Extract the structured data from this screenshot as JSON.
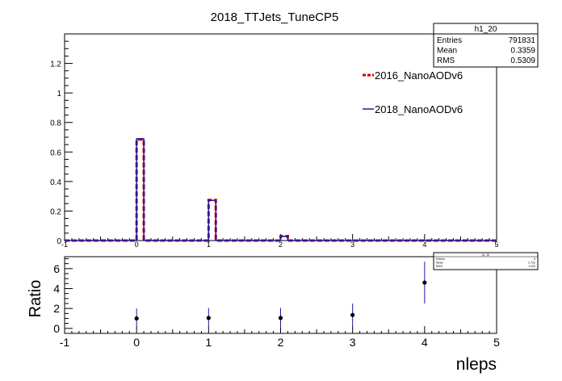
{
  "chart_data": [
    {
      "type": "bar",
      "title": "2018_TTJets_TuneCP5",
      "xlim": [
        -1,
        5
      ],
      "ylim": [
        0,
        1.4
      ],
      "x_ticks": [
        "-1",
        "0",
        "1",
        "2",
        "3",
        "4",
        "5"
      ],
      "y_ticks": [
        "0",
        "0.2",
        "0.4",
        "0.6",
        "0.8",
        "1",
        "1.2"
      ],
      "series": [
        {
          "name": "2016_NanoAODv6",
          "color": "#cc0000",
          "style": "dashed",
          "x": [
            -1,
            0,
            1,
            2,
            3,
            4
          ],
          "values": [
            0.0,
            0.685,
            0.275,
            0.03,
            0.0,
            0.0
          ]
        },
        {
          "name": "2018_NanoAODv6",
          "color": "#1a1aa6",
          "style": "solid",
          "x": [
            -1,
            0,
            1,
            2,
            3,
            4
          ],
          "values": [
            0.0,
            0.69,
            0.272,
            0.028,
            0.0,
            0.0
          ]
        }
      ],
      "stats_box": {
        "name": "h1_20",
        "rows": [
          {
            "label": "Entries",
            "value": "791831"
          },
          {
            "label": "Mean",
            "value": "0.3359"
          },
          {
            "label": "RMS",
            "value": "0.5309"
          }
        ]
      }
    },
    {
      "type": "scatter",
      "xlabel": "nleps",
      "ylabel": "Ratio",
      "xlim": [
        -1,
        5
      ],
      "ylim": [
        -0.5,
        7.2
      ],
      "x_ticks": [
        "-1",
        "0",
        "1",
        "2",
        "3",
        "4",
        "5"
      ],
      "y_ticks": [
        "0",
        "2",
        "4",
        "6"
      ],
      "points": [
        {
          "x": 0,
          "y": 1.0,
          "err": 1.0
        },
        {
          "x": 1,
          "y": 1.05,
          "err": 1.0
        },
        {
          "x": 2,
          "y": 1.05,
          "err": 1.0
        },
        {
          "x": 3,
          "y": 1.35,
          "err": 1.15
        },
        {
          "x": 4,
          "y": 4.6,
          "err": 2.1
        }
      ],
      "stats_box": {
        "name": "h1_20",
        "rows": [
          {
            "label": "Entries",
            "value": "5"
          },
          {
            "label": "Mean",
            "value": "2.722"
          },
          {
            "label": "RMS",
            "value": "1.023"
          }
        ]
      }
    }
  ]
}
